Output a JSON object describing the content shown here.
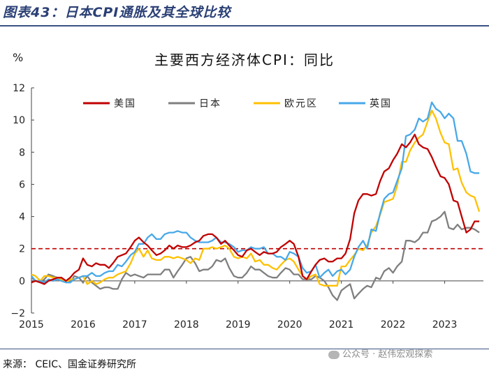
{
  "header": {
    "title": "图表43：日本CPI通胀及其全球比较"
  },
  "chart_data": {
    "type": "line",
    "title": "主要西方经济体CPI：同比",
    "ylabel": "%",
    "xlabel": "",
    "ylim": [
      -2,
      12
    ],
    "yticks": [
      "−2",
      "0",
      "2",
      "4",
      "6",
      "8",
      "10",
      "12"
    ],
    "xlim": [
      2015,
      2023.75
    ],
    "xticks": [
      "2015",
      "2016",
      "2017",
      "2018",
      "2019",
      "2020",
      "2021",
      "2022",
      "2023"
    ],
    "reference_line": {
      "y": 2,
      "style": "dashed",
      "color": "#c00000"
    },
    "legend_position": "top",
    "series": [
      {
        "name": "美国",
        "color": "#c00000",
        "x": [
          2015.0,
          2015.08,
          2015.17,
          2015.25,
          2015.33,
          2015.42,
          2015.5,
          2015.58,
          2015.67,
          2015.75,
          2015.83,
          2015.92,
          2016.0,
          2016.08,
          2016.17,
          2016.25,
          2016.33,
          2016.42,
          2016.5,
          2016.58,
          2016.67,
          2016.75,
          2016.83,
          2016.92,
          2017.0,
          2017.08,
          2017.17,
          2017.25,
          2017.33,
          2017.42,
          2017.5,
          2017.58,
          2017.67,
          2017.75,
          2017.83,
          2017.92,
          2018.0,
          2018.08,
          2018.17,
          2018.25,
          2018.33,
          2018.42,
          2018.5,
          2018.58,
          2018.67,
          2018.75,
          2018.83,
          2018.92,
          2019.0,
          2019.08,
          2019.17,
          2019.25,
          2019.33,
          2019.42,
          2019.5,
          2019.58,
          2019.67,
          2019.75,
          2019.83,
          2019.92,
          2020.0,
          2020.08,
          2020.17,
          2020.25,
          2020.33,
          2020.42,
          2020.5,
          2020.58,
          2020.67,
          2020.75,
          2020.83,
          2020.92,
          2021.0,
          2021.08,
          2021.17,
          2021.25,
          2021.33,
          2021.42,
          2021.5,
          2021.58,
          2021.67,
          2021.75,
          2021.83,
          2021.92,
          2022.0,
          2022.08,
          2022.17,
          2022.25,
          2022.33,
          2022.42,
          2022.5,
          2022.58,
          2022.67,
          2022.75,
          2022.83,
          2022.92,
          2023.0,
          2023.08,
          2023.17,
          2023.25,
          2023.33,
          2023.42,
          2023.5,
          2023.58,
          2023.67
        ],
        "y": [
          -0.1,
          0.0,
          -0.1,
          -0.2,
          0.0,
          0.1,
          0.2,
          0.2,
          0.0,
          0.2,
          0.5,
          0.7,
          1.4,
          1.0,
          0.9,
          1.1,
          1.0,
          1.0,
          0.8,
          1.1,
          1.5,
          1.6,
          1.7,
          2.1,
          2.5,
          2.7,
          2.4,
          2.2,
          1.9,
          1.6,
          1.7,
          1.9,
          2.2,
          2.0,
          2.2,
          2.1,
          2.1,
          2.2,
          2.4,
          2.5,
          2.8,
          2.9,
          2.9,
          2.7,
          2.3,
          2.5,
          2.2,
          1.9,
          1.6,
          1.5,
          1.9,
          2.0,
          1.8,
          1.6,
          1.8,
          1.7,
          1.7,
          1.8,
          2.1,
          2.3,
          2.5,
          2.3,
          1.5,
          0.3,
          0.1,
          0.6,
          1.0,
          1.3,
          1.4,
          1.2,
          1.2,
          1.4,
          1.4,
          1.7,
          2.6,
          4.2,
          5.0,
          5.4,
          5.4,
          5.3,
          5.4,
          6.2,
          6.8,
          7.0,
          7.5,
          7.9,
          8.5,
          8.3,
          8.6,
          9.1,
          8.5,
          8.3,
          8.2,
          7.7,
          7.1,
          6.5,
          6.4,
          6.0,
          5.0,
          4.9,
          4.0,
          3.0,
          3.2,
          3.7,
          3.7
        ]
      },
      {
        "name": "日本",
        "color": "#7f7f7f",
        "x": [
          2015.0,
          2015.08,
          2015.17,
          2015.25,
          2015.33,
          2015.42,
          2015.5,
          2015.58,
          2015.67,
          2015.75,
          2015.83,
          2015.92,
          2016.0,
          2016.08,
          2016.17,
          2016.25,
          2016.33,
          2016.42,
          2016.5,
          2016.58,
          2016.67,
          2016.75,
          2016.83,
          2016.92,
          2017.0,
          2017.08,
          2017.17,
          2017.25,
          2017.33,
          2017.42,
          2017.5,
          2017.58,
          2017.67,
          2017.75,
          2017.83,
          2017.92,
          2018.0,
          2018.08,
          2018.17,
          2018.25,
          2018.33,
          2018.42,
          2018.5,
          2018.58,
          2018.67,
          2018.75,
          2018.83,
          2018.92,
          2019.0,
          2019.08,
          2019.17,
          2019.25,
          2019.33,
          2019.42,
          2019.5,
          2019.58,
          2019.67,
          2019.75,
          2019.83,
          2019.92,
          2020.0,
          2020.08,
          2020.17,
          2020.25,
          2020.33,
          2020.42,
          2020.5,
          2020.58,
          2020.67,
          2020.75,
          2020.83,
          2020.92,
          2021.0,
          2021.08,
          2021.17,
          2021.25,
          2021.33,
          2021.42,
          2021.5,
          2021.58,
          2021.67,
          2021.75,
          2021.83,
          2021.92,
          2022.0,
          2022.08,
          2022.17,
          2022.25,
          2022.33,
          2022.42,
          2022.5,
          2022.58,
          2022.67,
          2022.75,
          2022.83,
          2022.92,
          2023.0,
          2023.08,
          2023.17,
          2023.25,
          2023.33,
          2023.42,
          2023.5,
          2023.58,
          2023.67
        ],
        "y": [
          0.2,
          0.0,
          -0.1,
          0.1,
          0.4,
          0.3,
          0.2,
          0.2,
          0.0,
          -0.1,
          0.3,
          0.2,
          -0.1,
          0.3,
          -0.1,
          -0.3,
          -0.5,
          -0.4,
          -0.4,
          -0.5,
          -0.5,
          0.1,
          0.5,
          0.3,
          0.4,
          0.3,
          0.2,
          0.4,
          0.4,
          0.4,
          0.4,
          0.7,
          0.7,
          0.2,
          0.6,
          1.0,
          1.4,
          1.5,
          1.1,
          0.6,
          0.7,
          0.7,
          0.9,
          1.3,
          1.2,
          1.4,
          0.8,
          0.3,
          0.2,
          0.2,
          0.5,
          0.9,
          0.7,
          0.7,
          0.5,
          0.3,
          0.2,
          0.2,
          0.5,
          0.8,
          0.7,
          0.4,
          0.4,
          0.1,
          0.1,
          0.1,
          0.3,
          0.2,
          0.0,
          -0.4,
          -0.9,
          -1.2,
          -0.6,
          -0.4,
          -0.2,
          -1.1,
          -0.8,
          -0.5,
          -0.3,
          -0.4,
          0.2,
          0.1,
          0.6,
          0.8,
          0.5,
          0.9,
          1.2,
          2.5,
          2.5,
          2.4,
          2.6,
          3.0,
          3.0,
          3.7,
          3.8,
          4.0,
          4.3,
          3.3,
          3.2,
          3.5,
          3.2,
          3.3,
          3.3,
          3.2,
          3.0
        ]
      },
      {
        "name": "欧元区",
        "color": "#ffc000",
        "x": [
          2015.0,
          2015.08,
          2015.17,
          2015.25,
          2015.33,
          2015.42,
          2015.5,
          2015.58,
          2015.67,
          2015.75,
          2015.83,
          2015.92,
          2016.0,
          2016.08,
          2016.17,
          2016.25,
          2016.33,
          2016.42,
          2016.5,
          2016.58,
          2016.67,
          2016.75,
          2016.83,
          2016.92,
          2017.0,
          2017.08,
          2017.17,
          2017.25,
          2017.33,
          2017.42,
          2017.5,
          2017.58,
          2017.67,
          2017.75,
          2017.83,
          2017.92,
          2018.0,
          2018.08,
          2018.17,
          2018.25,
          2018.33,
          2018.42,
          2018.5,
          2018.58,
          2018.67,
          2018.75,
          2018.83,
          2018.92,
          2019.0,
          2019.08,
          2019.17,
          2019.25,
          2019.33,
          2019.42,
          2019.5,
          2019.58,
          2019.67,
          2019.75,
          2019.83,
          2019.92,
          2020.0,
          2020.08,
          2020.17,
          2020.25,
          2020.33,
          2020.42,
          2020.5,
          2020.58,
          2020.67,
          2020.75,
          2020.83,
          2020.92,
          2021.0,
          2021.08,
          2021.17,
          2021.25,
          2021.33,
          2021.42,
          2021.5,
          2021.58,
          2021.67,
          2021.75,
          2021.83,
          2021.92,
          2022.0,
          2022.08,
          2022.17,
          2022.25,
          2022.33,
          2022.42,
          2022.5,
          2022.58,
          2022.67,
          2022.75,
          2022.83,
          2022.92,
          2023.0,
          2023.08,
          2023.17,
          2023.25,
          2023.33,
          2023.42,
          2023.5,
          2023.58,
          2023.67
        ],
        "y": [
          0.4,
          0.3,
          0.0,
          0.3,
          0.3,
          0.2,
          0.2,
          0.1,
          -0.1,
          0.1,
          0.1,
          0.2,
          0.3,
          -0.2,
          0.0,
          -0.2,
          -0.1,
          0.1,
          0.2,
          0.2,
          0.4,
          0.5,
          0.6,
          1.1,
          1.7,
          2.0,
          1.5,
          1.9,
          1.4,
          1.3,
          1.3,
          1.5,
          1.5,
          1.4,
          1.5,
          1.4,
          1.3,
          1.1,
          1.4,
          1.3,
          2.0,
          2.0,
          2.1,
          2.0,
          2.1,
          2.2,
          2.0,
          1.5,
          1.4,
          1.5,
          1.4,
          1.7,
          1.2,
          1.3,
          1.0,
          1.0,
          0.8,
          0.7,
          1.0,
          1.3,
          1.4,
          1.2,
          0.7,
          0.3,
          0.1,
          0.3,
          0.4,
          -0.2,
          -0.3,
          -0.3,
          -0.3,
          -0.3,
          0.9,
          0.9,
          1.3,
          1.6,
          2.0,
          1.9,
          2.2,
          3.0,
          3.4,
          4.1,
          4.9,
          5.0,
          5.1,
          5.9,
          7.4,
          7.4,
          8.1,
          8.6,
          8.9,
          9.1,
          9.9,
          10.6,
          10.1,
          9.2,
          8.6,
          8.5,
          6.9,
          7.0,
          6.1,
          5.5,
          5.3,
          5.2,
          4.3
        ]
      },
      {
        "name": "英国",
        "color": "#48a8e8",
        "x": [
          2015.0,
          2015.08,
          2015.17,
          2015.25,
          2015.33,
          2015.42,
          2015.5,
          2015.58,
          2015.67,
          2015.75,
          2015.83,
          2015.92,
          2016.0,
          2016.08,
          2016.17,
          2016.25,
          2016.33,
          2016.42,
          2016.5,
          2016.58,
          2016.67,
          2016.75,
          2016.83,
          2016.92,
          2017.0,
          2017.08,
          2017.17,
          2017.25,
          2017.33,
          2017.42,
          2017.5,
          2017.58,
          2017.67,
          2017.75,
          2017.83,
          2017.92,
          2018.0,
          2018.08,
          2018.17,
          2018.25,
          2018.33,
          2018.42,
          2018.5,
          2018.58,
          2018.67,
          2018.75,
          2018.83,
          2018.92,
          2019.0,
          2019.08,
          2019.17,
          2019.25,
          2019.33,
          2019.42,
          2019.5,
          2019.58,
          2019.67,
          2019.75,
          2019.83,
          2019.92,
          2020.0,
          2020.08,
          2020.17,
          2020.25,
          2020.33,
          2020.42,
          2020.5,
          2020.58,
          2020.67,
          2020.75,
          2020.83,
          2020.92,
          2021.0,
          2021.08,
          2021.17,
          2021.25,
          2021.33,
          2021.42,
          2021.5,
          2021.58,
          2021.67,
          2021.75,
          2021.83,
          2021.92,
          2022.0,
          2022.08,
          2022.17,
          2022.25,
          2022.33,
          2022.42,
          2022.5,
          2022.58,
          2022.67,
          2022.75,
          2022.83,
          2022.92,
          2023.0,
          2023.08,
          2023.17,
          2023.25,
          2023.33,
          2023.42,
          2023.5,
          2023.58,
          2023.67
        ],
        "y": [
          0.3,
          0.0,
          0.0,
          -0.1,
          0.1,
          0.0,
          0.1,
          0.0,
          -0.1,
          -0.1,
          0.1,
          0.2,
          0.3,
          0.3,
          0.5,
          0.3,
          0.3,
          0.5,
          0.6,
          0.6,
          1.0,
          0.9,
          1.2,
          1.6,
          1.8,
          2.3,
          2.3,
          2.7,
          2.9,
          2.6,
          2.6,
          2.9,
          3.0,
          3.0,
          3.1,
          3.0,
          3.0,
          2.7,
          2.5,
          2.4,
          2.4,
          2.4,
          2.5,
          2.7,
          2.4,
          2.4,
          2.3,
          2.1,
          1.8,
          1.9,
          1.9,
          2.1,
          2.0,
          2.0,
          2.1,
          1.7,
          1.7,
          1.5,
          1.5,
          1.3,
          1.8,
          1.7,
          1.5,
          0.8,
          0.5,
          0.6,
          1.0,
          0.2,
          0.5,
          0.7,
          0.3,
          0.6,
          0.7,
          0.4,
          0.7,
          1.5,
          2.1,
          2.5,
          2.0,
          3.2,
          3.1,
          4.2,
          5.1,
          5.4,
          5.5,
          6.2,
          7.0,
          9.0,
          9.1,
          9.4,
          10.1,
          9.9,
          10.1,
          11.1,
          10.7,
          10.5,
          10.1,
          10.4,
          10.1,
          8.7,
          8.7,
          7.9,
          6.8,
          6.7,
          6.7
        ]
      }
    ]
  },
  "source": "来源： CEIC、国金证券研究所",
  "watermark": "公众号 · 赵伟宏观探索"
}
